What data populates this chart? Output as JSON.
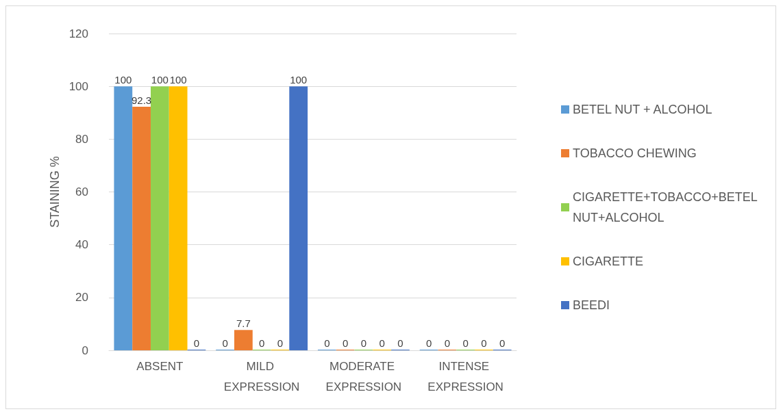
{
  "chart_data": {
    "type": "bar",
    "ylabel": "STAINING %",
    "categories": [
      "ABSENT",
      "MILD EXPRESSION",
      "MODERATE EXPRESSION",
      "INTENSE EXPRESSION"
    ],
    "series": [
      {
        "name": "BETEL NUT + ALCOHOL",
        "color": "#5b9bd5",
        "values": [
          100,
          0,
          0,
          0
        ]
      },
      {
        "name": "TOBACCO CHEWING",
        "color": "#ed7d31",
        "values": [
          92.3,
          7.7,
          0,
          0
        ]
      },
      {
        "name": "CIGARETTE+TOBACCO+BETEL NUT+ALCOHOL",
        "color": "#92d050",
        "values": [
          100,
          0,
          0,
          0
        ]
      },
      {
        "name": "CIGARETTE",
        "color": "#ffc000",
        "values": [
          100,
          0,
          0,
          0
        ]
      },
      {
        "name": "BEEDI",
        "color": "#4472c4",
        "values": [
          0,
          100,
          0,
          0
        ]
      }
    ],
    "ylim": [
      0,
      120
    ],
    "yticks": [
      0,
      20,
      40,
      60,
      80,
      100,
      120
    ],
    "grid": "y",
    "legend": "right",
    "data_labels": true
  }
}
